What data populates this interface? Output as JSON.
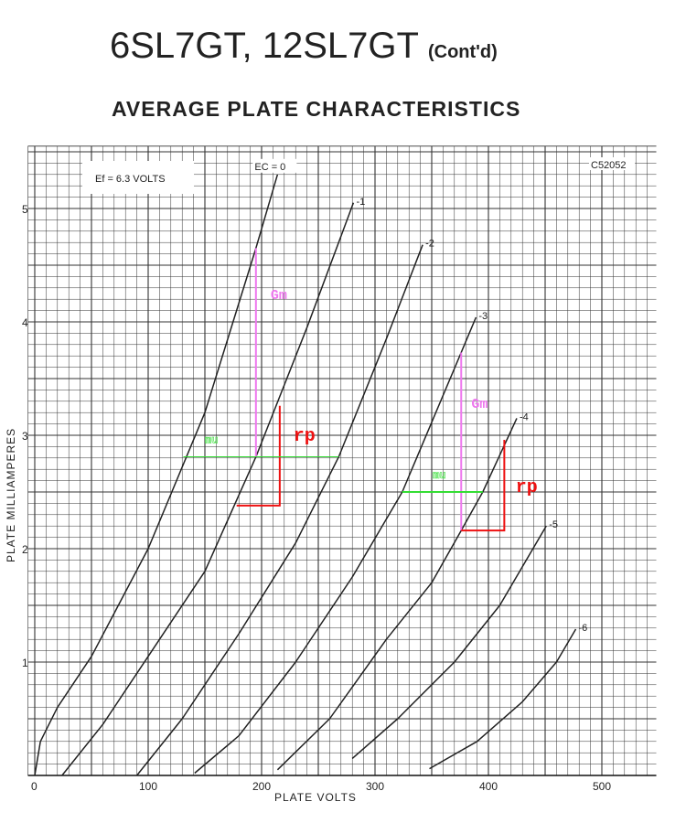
{
  "header": {
    "title": "6SL7GT, 12SL7GT",
    "title_suffix": "(Cont'd)",
    "subtitle": "AVERAGE PLATE CHARACTERISTICS"
  },
  "chart_data": {
    "type": "line",
    "xlabel": "PLATE VOLTS",
    "ylabel": "PLATE MILLIAMPERES",
    "xlim": [
      -6,
      548
    ],
    "ylim": [
      0,
      5.55
    ],
    "xticks": [
      0,
      100,
      200,
      300,
      400,
      500
    ],
    "xtick_labels": [
      "0",
      "100",
      "200",
      "300",
      "400",
      "500"
    ],
    "yticks": [
      1,
      2,
      3,
      4,
      5
    ],
    "ytick_labels": [
      "1",
      "2",
      "3",
      "4",
      "5"
    ],
    "grid": true,
    "code_label": "C52052",
    "condition_label": "Ef = 6.3 VOLTS",
    "series": [
      {
        "name": "EC = 0",
        "points": [
          [
            0,
            0
          ],
          [
            5,
            0.3
          ],
          [
            20,
            0.6
          ],
          [
            50,
            1.05
          ],
          [
            100,
            2.0
          ],
          [
            150,
            3.2
          ],
          [
            195,
            4.65
          ],
          [
            214,
            5.3
          ]
        ]
      },
      {
        "name": "-1",
        "points": [
          [
            24,
            0
          ],
          [
            60,
            0.45
          ],
          [
            100,
            1.05
          ],
          [
            150,
            1.8
          ],
          [
            195,
            2.81
          ],
          [
            240,
            3.95
          ],
          [
            281,
            5.05
          ]
        ]
      },
      {
        "name": "-2",
        "points": [
          [
            90,
            0
          ],
          [
            130,
            0.5
          ],
          [
            180,
            1.25
          ],
          [
            230,
            2.05
          ],
          [
            268,
            2.81
          ],
          [
            310,
            3.85
          ],
          [
            342,
            4.68
          ]
        ]
      },
      {
        "name": "-3",
        "points": [
          [
            141,
            0.02
          ],
          [
            180,
            0.35
          ],
          [
            230,
            1.0
          ],
          [
            280,
            1.75
          ],
          [
            324,
            2.5
          ],
          [
            376,
            3.73
          ],
          [
            389,
            4.04
          ]
        ]
      },
      {
        "name": "-4",
        "points": [
          [
            214,
            0.05
          ],
          [
            260,
            0.5
          ],
          [
            310,
            1.2
          ],
          [
            350,
            1.7
          ],
          [
            376,
            2.16
          ],
          [
            395,
            2.5
          ],
          [
            425,
            3.15
          ]
        ]
      },
      {
        "name": "-5",
        "points": [
          [
            280,
            0.15
          ],
          [
            320,
            0.5
          ],
          [
            370,
            1.0
          ],
          [
            410,
            1.5
          ],
          [
            451,
            2.2
          ]
        ]
      },
      {
        "name": "-6",
        "points": [
          [
            348,
            0.06
          ],
          [
            390,
            0.3
          ],
          [
            430,
            0.65
          ],
          [
            460,
            1.0
          ],
          [
            477,
            1.29
          ]
        ]
      }
    ],
    "annotations": [
      {
        "label": "Gm",
        "color": "#ee77ee",
        "kind": "vertical",
        "x": 195,
        "y1": 2.81,
        "y2": 4.65,
        "label_at": [
          208,
          4.2
        ]
      },
      {
        "label": "rp",
        "color": "#ee1111",
        "kind": "triangle",
        "x1": 178,
        "x2": 216,
        "y1": 2.38,
        "y2": 3.26,
        "label_at": [
          228,
          2.95
        ]
      },
      {
        "label": "mu",
        "color": "#33dd33",
        "kind": "horizontal",
        "y": 2.81,
        "x1": 131,
        "x2": 268,
        "label_at": [
          150,
          2.93
        ]
      },
      {
        "label": "Gm",
        "color": "#ee77ee",
        "kind": "vertical",
        "x": 376,
        "y1": 2.16,
        "y2": 3.73,
        "label_at": [
          385,
          3.24
        ]
      },
      {
        "label": "rp",
        "color": "#ee1111",
        "kind": "triangle",
        "x1": 376,
        "x2": 414,
        "y1": 2.16,
        "y2": 2.96,
        "label_at": [
          424,
          2.5
        ]
      },
      {
        "label": "mu",
        "color": "#33dd33",
        "kind": "horizontal",
        "y": 2.5,
        "x1": 324,
        "x2": 395,
        "label_at": [
          351,
          2.62
        ]
      }
    ]
  }
}
